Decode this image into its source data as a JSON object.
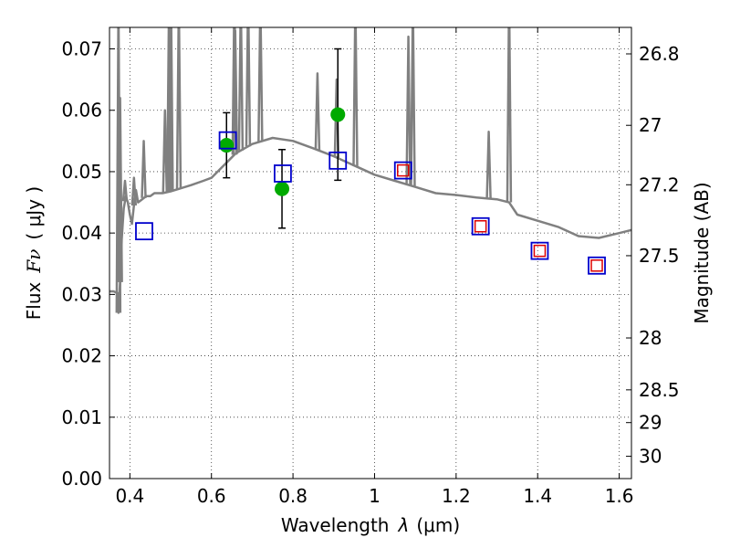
{
  "chart_data": {
    "type": "scatter",
    "xlabel_prefix": "Wavelength",
    "xlabel_symbol": "λ",
    "xlabel_unit": "(μm)",
    "ylabel_prefix": "Flux",
    "ylabel_symbol": "Fν",
    "ylabel_unit": "( μJy )",
    "y2label": "Magnitude (AB)",
    "xlim": [
      0.35,
      1.63
    ],
    "ylim": [
      0.0,
      0.0735
    ],
    "x_ticks": [
      0.4,
      0.6,
      0.8,
      1.0,
      1.2,
      1.4,
      1.6
    ],
    "x_tick_labels": [
      "0.4",
      "0.6",
      "0.8",
      "1",
      "1.2",
      "1.4",
      "1.6"
    ],
    "y_ticks": [
      0.0,
      0.01,
      0.02,
      0.03,
      0.04,
      0.05,
      0.06,
      0.07
    ],
    "y_tick_labels": [
      "0.00",
      "0.01",
      "0.02",
      "0.03",
      "0.04",
      "0.05",
      "0.06",
      "0.07"
    ],
    "mag_ticks": [
      26.8,
      27,
      27.2,
      27.5,
      28,
      28.5,
      29,
      30
    ],
    "mag_tick_labels": [
      "26.8",
      "27",
      "27.2",
      "27.5",
      "28",
      "28.5",
      "29",
      "30"
    ],
    "grid": true,
    "colors": {
      "model_sed": "#808080",
      "observed": "#00aa00",
      "model_photometry": "#0000cc",
      "ir_photometry": "#dd0000"
    },
    "series": [
      {
        "kind": "model_sed",
        "x": [
          0.35,
          0.36,
          0.37,
          0.372,
          0.375,
          0.378,
          0.38,
          0.385,
          0.39,
          0.395,
          0.4,
          0.405,
          0.41,
          0.415,
          0.42,
          0.43,
          0.44,
          0.45,
          0.46,
          0.47,
          0.48,
          0.5,
          0.52,
          0.55,
          0.58,
          0.6,
          0.63,
          0.66,
          0.7,
          0.75,
          0.8,
          0.85,
          0.9,
          0.95,
          1.0,
          1.05,
          1.1,
          1.15,
          1.2,
          1.25,
          1.3,
          1.33,
          1.35,
          1.4,
          1.45,
          1.5,
          1.55,
          1.6,
          1.63
        ],
        "y": [
          0.0305,
          0.0305,
          0.0302,
          0.027,
          0.031,
          0.034,
          0.039,
          0.044,
          0.046,
          0.045,
          0.043,
          0.0415,
          0.0445,
          0.047,
          0.045,
          0.0455,
          0.046,
          0.046,
          0.0465,
          0.0465,
          0.0465,
          0.0468,
          0.0472,
          0.0478,
          0.0485,
          0.049,
          0.051,
          0.053,
          0.0545,
          0.0555,
          0.055,
          0.0538,
          0.0525,
          0.051,
          0.0495,
          0.0485,
          0.0475,
          0.0465,
          0.0462,
          0.0458,
          0.0455,
          0.045,
          0.043,
          0.042,
          0.041,
          0.0395,
          0.0392,
          0.04,
          0.0405
        ]
      },
      {
        "kind": "model_sed_emission_lines",
        "x": [
          0.372,
          0.376,
          0.388,
          0.41,
          0.434,
          0.486,
          0.496,
          0.5007,
          0.52,
          0.6563,
          0.6583,
          0.672,
          0.69,
          0.72,
          0.86,
          0.907,
          0.953,
          1.083,
          1.094,
          1.28,
          1.33
        ],
        "y": [
          0.078,
          0.062,
          0.0485,
          0.049,
          0.055,
          0.06,
          0.078,
          0.079,
          0.078,
          0.079,
          0.073,
          0.078,
          0.079,
          0.078,
          0.066,
          0.065,
          0.078,
          0.072,
          0.078,
          0.0565,
          0.079
        ]
      },
      {
        "kind": "observed",
        "x": [
          0.637,
          0.773,
          0.91
        ],
        "y": [
          0.0543,
          0.0472,
          0.0593
        ],
        "yerr": [
          0.0053,
          0.0064,
          0.0107
        ]
      },
      {
        "kind": "model_photometry",
        "x": [
          0.435,
          0.64,
          0.775,
          0.91,
          1.07,
          1.26,
          1.405,
          1.545
        ],
        "y": [
          0.0403,
          0.0551,
          0.0497,
          0.0518,
          0.0502,
          0.0411,
          0.0371,
          0.0347
        ]
      },
      {
        "kind": "ir_photometry",
        "x": [
          1.07,
          1.26,
          1.405,
          1.545
        ],
        "y": [
          0.0502,
          0.0411,
          0.0371,
          0.0347
        ]
      }
    ]
  }
}
